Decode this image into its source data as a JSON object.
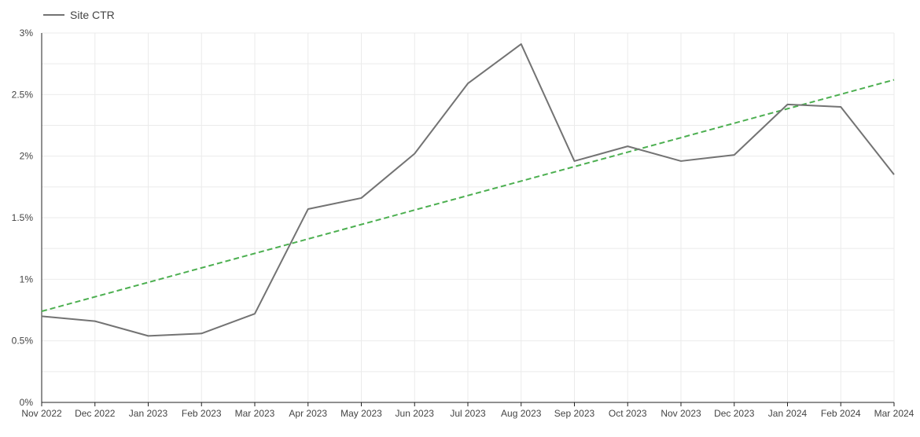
{
  "chart_data": {
    "type": "line",
    "title": "",
    "xlabel": "",
    "ylabel": "",
    "categories": [
      "Nov 2022",
      "Dec 2022",
      "Jan 2023",
      "Feb 2023",
      "Mar 2023",
      "Apr 2023",
      "May 2023",
      "Jun 2023",
      "Jul 2023",
      "Aug 2023",
      "Sep 2023",
      "Oct 2023",
      "Nov 2023",
      "Dec 2023",
      "Jan 2024",
      "Feb 2024",
      "Mar 2024"
    ],
    "ylim": [
      0,
      3
    ],
    "y_ticks": [
      0,
      0.5,
      1,
      1.5,
      2,
      2.5,
      3
    ],
    "y_tick_labels": [
      "0%",
      "0.5%",
      "1%",
      "1.5%",
      "2%",
      "2.5%",
      "3%"
    ],
    "grid": true,
    "legend": {
      "position": "top-left",
      "entries": [
        "Site CTR"
      ]
    },
    "series": [
      {
        "name": "Site CTR",
        "color": "#737373",
        "values": [
          0.7,
          0.66,
          0.54,
          0.56,
          0.72,
          1.57,
          1.66,
          2.02,
          2.59,
          2.91,
          1.96,
          2.08,
          1.96,
          2.01,
          2.42,
          2.4,
          1.85
        ]
      }
    ],
    "trendline": {
      "color": "#4caf50",
      "style": "dashed",
      "start": 0.74,
      "end": 2.62
    }
  }
}
